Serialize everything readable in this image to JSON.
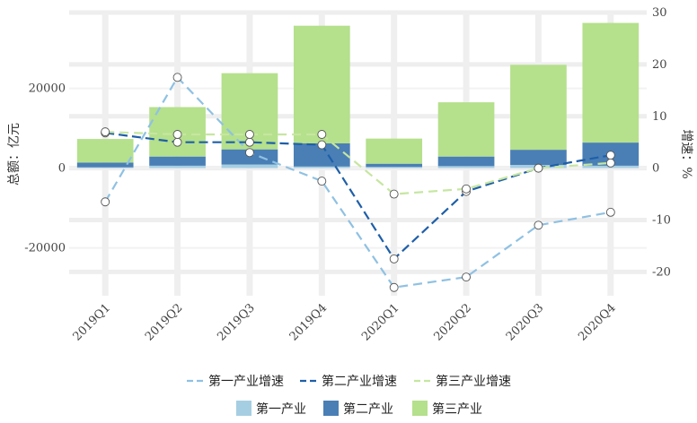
{
  "chart_data": {
    "type": "bar+line",
    "categories": [
      "2019Q1",
      "2019Q2",
      "2019Q3",
      "2019Q4",
      "2020Q1",
      "2020Q2",
      "2020Q3",
      "2020Q4"
    ],
    "bars": [
      {
        "name": "第一产业",
        "color": "#a6cee3",
        "values": [
          200,
          600,
          900,
          400,
          300,
          500,
          800,
          600
        ]
      },
      {
        "name": "第二产业",
        "color": "#4a7fb5",
        "values": [
          1200,
          2300,
          3800,
          5800,
          800,
          2400,
          3800,
          5800
        ]
      },
      {
        "name": "第三产业",
        "color": "#b5e08c",
        "values": [
          5900,
          12400,
          19100,
          29500,
          6300,
          13600,
          21300,
          30000
        ]
      }
    ],
    "lines": [
      {
        "name": "第一产业增速",
        "color": "#8fc1e3",
        "values": [
          -6.5,
          17.5,
          3,
          -2.5,
          -23,
          -21,
          -11,
          -8.5
        ]
      },
      {
        "name": "第二产业增速",
        "color": "#1f5fa8",
        "values": [
          6.8,
          5,
          5,
          4.5,
          -17.5,
          -4.5,
          0,
          2.5
        ]
      },
      {
        "name": "第三产业增速",
        "color": "#c6e6a0",
        "values": [
          7,
          6.5,
          6.5,
          6.5,
          -5,
          -4,
          0,
          1
        ]
      }
    ],
    "y_left": {
      "label": "总额：亿元",
      "ticks": [
        -20000,
        0,
        20000
      ],
      "range": [
        -32000,
        39000
      ]
    },
    "y_right": {
      "label": "增速：%",
      "ticks": [
        -20,
        -10,
        0,
        10,
        20,
        30
      ],
      "range": [
        -24.6,
        30
      ]
    },
    "grid": true,
    "legend_position": "bottom"
  }
}
